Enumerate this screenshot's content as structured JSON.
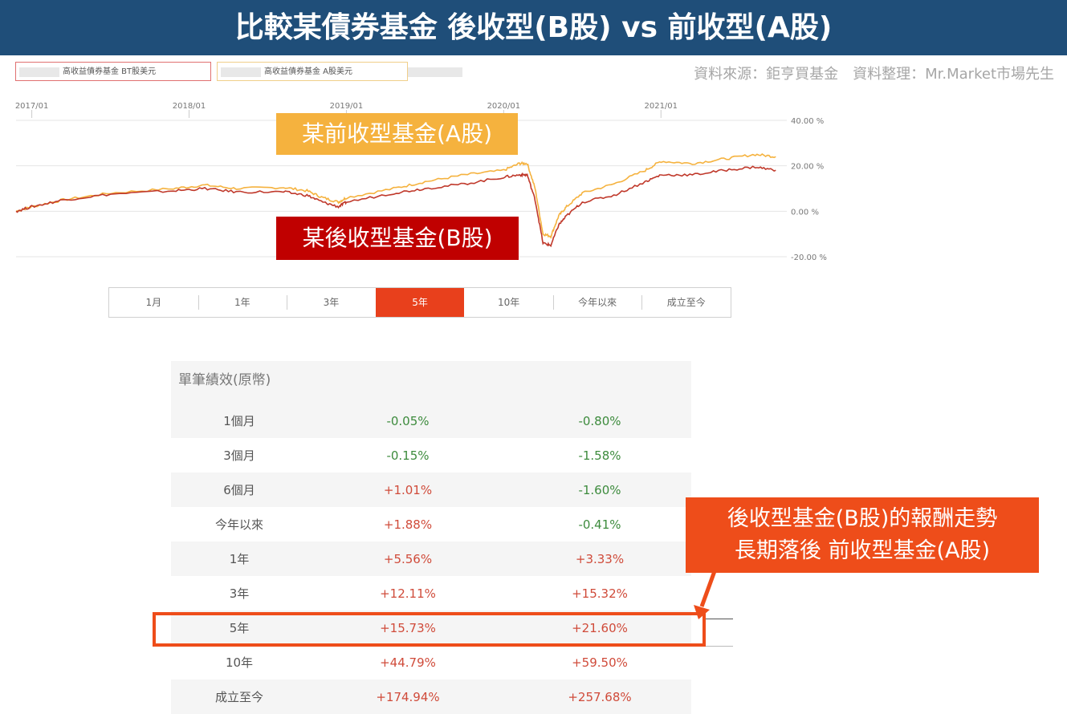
{
  "banner": {
    "title": "比較某債券基金 後收型(B股) vs 前收型(A股)"
  },
  "legend": {
    "b_label": "高收益債券基金 BT股美元",
    "a_label": "高收益債券基金 A股美元"
  },
  "source": "資料來源：鉅亨買基金　資料整理：Mr.Market市場先生",
  "labels": {
    "a_share": "某前收型基金(A股)",
    "b_share": "某後收型基金(B股)"
  },
  "period_tabs": [
    "1月",
    "1年",
    "3年",
    "5年",
    "10年",
    "今年以來",
    "成立至今"
  ],
  "active_period": "5年",
  "table": {
    "header": "單筆績效(原幣)",
    "rows": [
      {
        "period": "1個月",
        "b": "-0.05%",
        "a": "-0.80%"
      },
      {
        "period": "3個月",
        "b": "-0.15%",
        "a": "-1.58%"
      },
      {
        "period": "6個月",
        "b": "+1.01%",
        "a": "-1.60%"
      },
      {
        "period": "今年以來",
        "b": "+1.88%",
        "a": "-0.41%"
      },
      {
        "period": "1年",
        "b": "+5.56%",
        "a": "+3.33%"
      },
      {
        "period": "3年",
        "b": "+12.11%",
        "a": "+15.32%"
      },
      {
        "period": "5年",
        "b": "+15.73%",
        "a": "+21.60%"
      },
      {
        "period": "10年",
        "b": "+44.79%",
        "a": "+59.50%"
      },
      {
        "period": "成立至今",
        "b": "+174.94%",
        "a": "+257.68%"
      }
    ]
  },
  "callout": {
    "line1": "後收型基金(B股)的報酬走勢",
    "line2": "長期落後 前收型基金(A股)"
  },
  "colors": {
    "a_series": "#f5b23e",
    "b_series": "#c0392b",
    "accent": "#ee4d1a",
    "banner": "#1f4e79",
    "positive": "#d04b3a",
    "negative": "#3d8b3d"
  },
  "chart_data": {
    "type": "line",
    "x_tick_labels": [
      "2017/01",
      "2018/01",
      "2019/01",
      "2020/01",
      "2021/01"
    ],
    "y_tick_labels": [
      "40.00 %",
      "20.00 %",
      "0.00 %",
      "-20.00 %"
    ],
    "ylim": [
      -20,
      40
    ],
    "xlim": [
      2016.9,
      2021.8
    ],
    "grid": true,
    "series": [
      {
        "name": "高收益債券基金 A股美元",
        "points": [
          [
            2016.9,
            0
          ],
          [
            2017.0,
            2
          ],
          [
            2017.2,
            5
          ],
          [
            2017.5,
            8
          ],
          [
            2017.9,
            10
          ],
          [
            2018.1,
            11.5
          ],
          [
            2018.3,
            10
          ],
          [
            2018.6,
            10.5
          ],
          [
            2018.75,
            9
          ],
          [
            2018.85,
            6
          ],
          [
            2018.95,
            4
          ],
          [
            2019.0,
            6
          ],
          [
            2019.3,
            10
          ],
          [
            2019.5,
            13
          ],
          [
            2019.75,
            16
          ],
          [
            2020.0,
            18
          ],
          [
            2020.1,
            21
          ],
          [
            2020.15,
            21
          ],
          [
            2020.2,
            10
          ],
          [
            2020.25,
            -10
          ],
          [
            2020.3,
            -11
          ],
          [
            2020.35,
            -2
          ],
          [
            2020.4,
            2
          ],
          [
            2020.5,
            8
          ],
          [
            2020.7,
            12
          ],
          [
            2020.9,
            18
          ],
          [
            2021.0,
            22
          ],
          [
            2021.2,
            21
          ],
          [
            2021.4,
            23
          ],
          [
            2021.6,
            25
          ],
          [
            2021.73,
            24
          ]
        ]
      },
      {
        "name": "高收益債券基金 BT股美元",
        "points": [
          [
            2016.9,
            0
          ],
          [
            2017.0,
            2
          ],
          [
            2017.2,
            5
          ],
          [
            2017.5,
            7.5
          ],
          [
            2017.9,
            9
          ],
          [
            2018.1,
            10
          ],
          [
            2018.3,
            8.5
          ],
          [
            2018.6,
            8.5
          ],
          [
            2018.75,
            7
          ],
          [
            2018.85,
            4
          ],
          [
            2018.95,
            2
          ],
          [
            2019.0,
            4
          ],
          [
            2019.3,
            8
          ],
          [
            2019.5,
            10
          ],
          [
            2019.75,
            12
          ],
          [
            2020.0,
            15
          ],
          [
            2020.1,
            16
          ],
          [
            2020.15,
            16
          ],
          [
            2020.2,
            5
          ],
          [
            2020.25,
            -14
          ],
          [
            2020.3,
            -15
          ],
          [
            2020.35,
            -6
          ],
          [
            2020.4,
            -2
          ],
          [
            2020.5,
            4
          ],
          [
            2020.7,
            7
          ],
          [
            2020.9,
            13
          ],
          [
            2021.0,
            16
          ],
          [
            2021.2,
            16
          ],
          [
            2021.4,
            18
          ],
          [
            2021.6,
            19.5
          ],
          [
            2021.73,
            18
          ]
        ]
      }
    ]
  }
}
